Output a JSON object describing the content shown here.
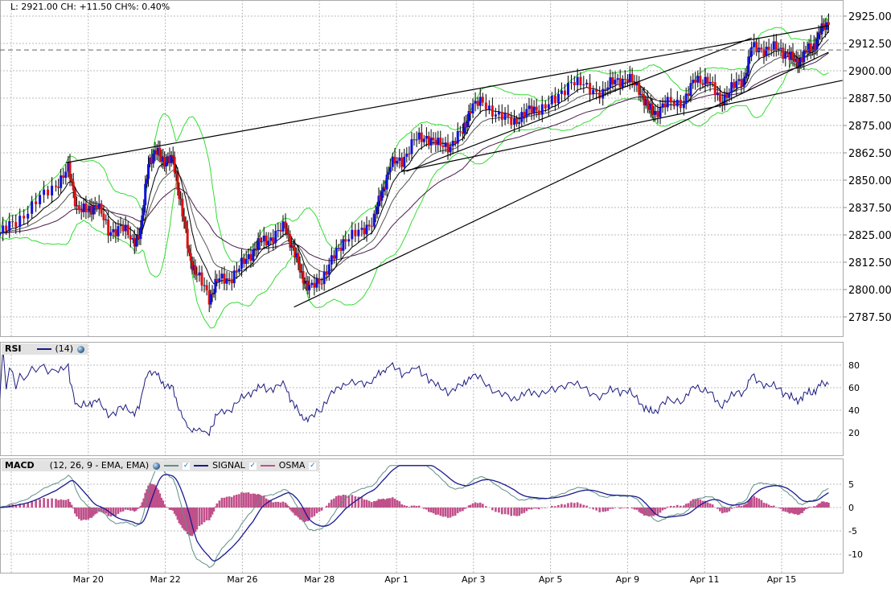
{
  "header": {
    "quote": "L: 2921.00 CH: +11.50 CH%: 0.40%"
  },
  "rsi_legend": {
    "label": "RSI",
    "params": "(14)",
    "line_color": "#1a1a80"
  },
  "macd_legend": {
    "label": "MACD",
    "params": "(12, 26, 9 - EMA, EMA)",
    "signal": "SIGNAL",
    "osma": "OSMA",
    "macd_color": "#5f8f86",
    "signal_color": "#1a1a90",
    "osma_color": "#c0508a"
  },
  "chart_data": {
    "type": "candlestick",
    "title": "",
    "x_tick_labels": [
      "Mar 20",
      "Mar 22",
      "Mar 26",
      "Mar 28",
      "Apr 1",
      "Apr 3",
      "Apr 5",
      "Apr 9",
      "Apr 11",
      "Apr 15"
    ],
    "xlim": [
      -0.15,
      10.79
    ],
    "price": {
      "ylim": [
        2781,
        2930
      ],
      "y_ticks": [
        "2925.00",
        "2912.50",
        "2900.00",
        "2887.50",
        "2875.00",
        "2862.50",
        "2850.00",
        "2837.50",
        "2825.00",
        "2812.50",
        "2800.00",
        "2787.50"
      ],
      "last_price_line": 2909.5,
      "x": [
        -0.15,
        0.06,
        0.32,
        0.58,
        0.74,
        0.85,
        1.0,
        1.11,
        1.26,
        1.42,
        1.58,
        1.68,
        1.78,
        1.89,
        1.99,
        2.1,
        2.2,
        2.31,
        2.41,
        2.57,
        2.67,
        2.83,
        2.99,
        3.14,
        3.25,
        3.4,
        3.56,
        3.66,
        3.77,
        3.87,
        4.03,
        4.19,
        4.34,
        4.55,
        4.71,
        4.81,
        4.92,
        5.07,
        5.23,
        5.39,
        5.54,
        5.7,
        5.86,
        5.96,
        6.12,
        6.33,
        6.53,
        6.69,
        6.85,
        7.06,
        7.27,
        7.47,
        7.68,
        7.84,
        8.0,
        8.15,
        8.26,
        8.36,
        8.52,
        8.73,
        8.88,
        9.04,
        9.2,
        9.35,
        9.51,
        9.61,
        9.77,
        9.93,
        10.08,
        10.19,
        10.29,
        10.4,
        10.5,
        10.61
      ],
      "close": [
        2825.7,
        2831,
        2840,
        2848,
        2855,
        2838,
        2835,
        2840,
        2826,
        2829,
        2822,
        2826,
        2859,
        2862.5,
        2859,
        2859,
        2840,
        2815,
        2807,
        2796,
        2804,
        2805,
        2811,
        2818,
        2822,
        2824,
        2829,
        2818,
        2807,
        2800,
        2805,
        2815,
        2824,
        2826,
        2833,
        2844,
        2857,
        2859,
        2868,
        2870,
        2866,
        2866,
        2872,
        2883,
        2886,
        2879,
        2877,
        2881,
        2883,
        2886,
        2896,
        2892,
        2890,
        2896,
        2896,
        2892,
        2883,
        2881,
        2885,
        2886,
        2896,
        2896,
        2886,
        2892,
        2896,
        2910,
        2910,
        2910,
        2908,
        2903,
        2908,
        2910,
        2918,
        2921
      ],
      "overlays": [
        "EMA 10",
        "EMA 20",
        "EMA 50",
        "Bollinger Bands (20, 2)"
      ],
      "trendlines": [
        {
          "from": [
            0.71,
            2858
          ],
          "to": [
            10.61,
            2920.6
          ]
        },
        {
          "from": [
            3.67,
            2792
          ],
          "to": [
            10.61,
            2908.5
          ]
        },
        {
          "from": [
            5.07,
            2854
          ],
          "to": [
            10.79,
            2895.6
          ]
        },
        {
          "from": [
            5.13,
            2854
          ],
          "to": [
            9.61,
            2915
          ]
        }
      ]
    },
    "rsi": {
      "period": 14,
      "ylim": [
        0,
        100
      ],
      "y_ticks": [
        "80",
        "60",
        "40",
        "20"
      ]
    },
    "macd": {
      "fast": 12,
      "slow": 26,
      "signal": 9,
      "ylim": [
        -13,
        9
      ],
      "y_ticks": [
        "5",
        "0",
        "-5",
        "-10"
      ]
    }
  }
}
